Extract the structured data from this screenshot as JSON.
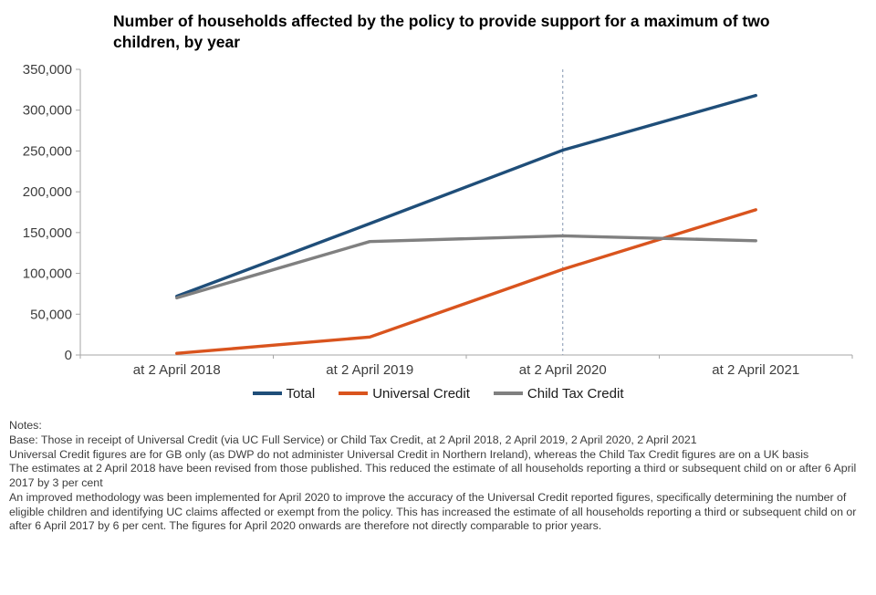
{
  "title": "Number of households affected by the policy to provide support for a maximum of two children, by year",
  "chart_data": {
    "type": "line",
    "categories": [
      "at 2 April 2018",
      "at 2 April 2019",
      "at 2 April 2020",
      "at 2 April 2021"
    ],
    "series": [
      {
        "name": "Total",
        "color": "#1f4e79",
        "values": [
          72000,
          161000,
          251000,
          318000
        ]
      },
      {
        "name": "Universal Credit",
        "color": "#d9541e",
        "values": [
          2000,
          22000,
          105000,
          178000
        ]
      },
      {
        "name": "Child Tax Credit",
        "color": "#808080",
        "values": [
          70000,
          139000,
          146000,
          140000
        ]
      }
    ],
    "ylim": [
      0,
      350000
    ],
    "ytick_step": 50000,
    "y_tick_labels": [
      "0",
      "50,000",
      "100,000",
      "150,000",
      "200,000",
      "250,000",
      "300,000",
      "350,000"
    ],
    "xlabel": "",
    "ylabel": "",
    "grid": false,
    "legend_position": "bottom",
    "axis_color": "#a6a6a6",
    "reference_line": {
      "at_category": "at 2 April 2020",
      "style": "dashed",
      "color": "#8496b0"
    }
  },
  "notes": {
    "heading": "Notes:",
    "items": [
      "Base: Those in receipt of Universal Credit (via UC Full Service) or Child Tax Credit, at 2 April 2018, 2 April 2019, 2 April 2020, 2 April 2021",
      "Universal Credit figures are for GB only (as DWP do not administer Universal Credit in Northern Ireland), whereas the Child Tax Credit figures are on a UK basis",
      "The estimates at 2 April 2018 have been revised from those published. This reduced the estimate of all households reporting a third or subsequent child on or after 6 April 2017 by 3 per cent",
      "An improved methodology was been implemented for April 2020 to improve the accuracy of the Universal Credit reported figures, specifically determining the number of eligible children and identifying UC claims affected or exempt from the policy. This has increased the estimate of all households reporting a third or subsequent child on or after 6 April 2017 by 6 per cent. The figures for April 2020 onwards are therefore not directly comparable to prior years."
    ]
  }
}
